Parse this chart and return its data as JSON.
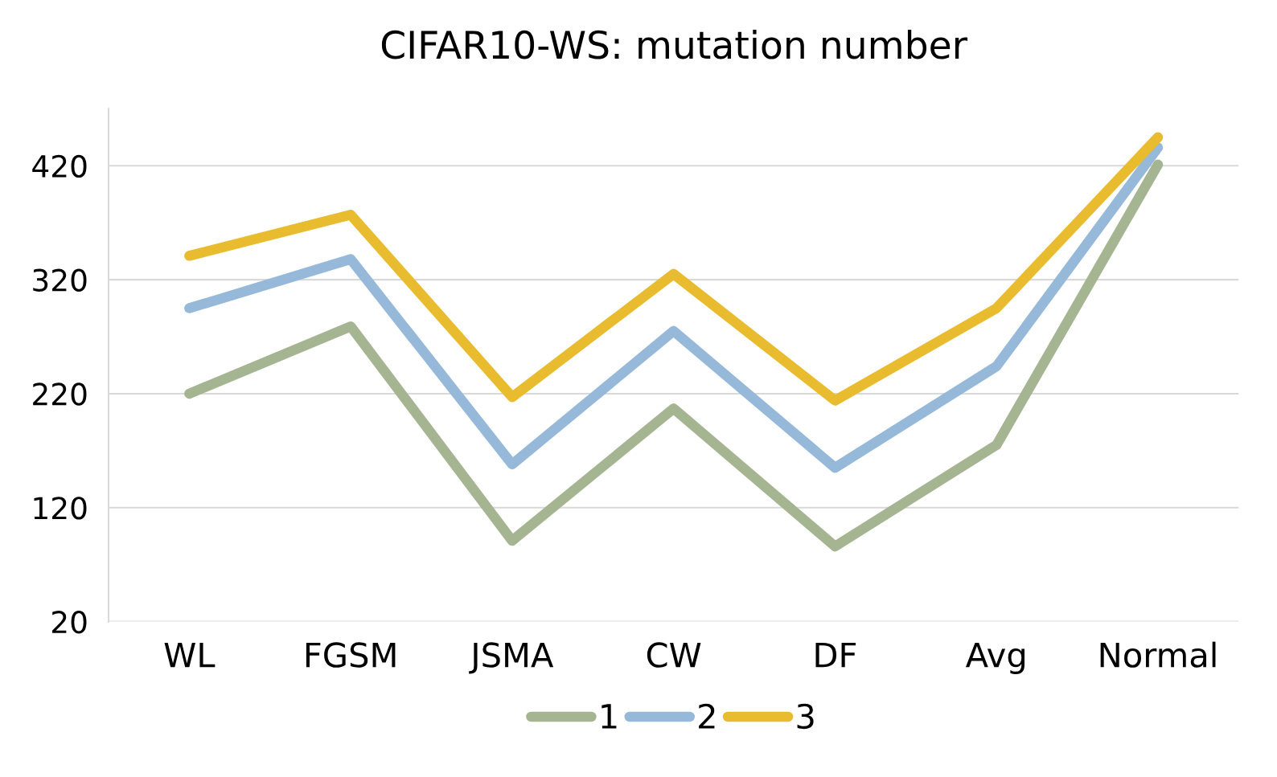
{
  "chart_data": {
    "type": "line",
    "title": "CIFAR10-WS: mutation number",
    "categories": [
      "WL",
      "FGSM",
      "JSMA",
      "CW",
      "DF",
      "Avg",
      "Normal"
    ],
    "series": [
      {
        "name": "1",
        "color": "#a5b592",
        "values": [
          220,
          279,
          91,
          207,
          86,
          175,
          421
        ]
      },
      {
        "name": "2",
        "color": "#97b9d9",
        "values": [
          295,
          338,
          158,
          275,
          155,
          244,
          436
        ]
      },
      {
        "name": "3",
        "color": "#e8bc2e",
        "values": [
          341,
          377,
          217,
          325,
          214,
          295,
          445
        ]
      }
    ],
    "ylim": [
      20,
      470
    ],
    "yticks": [
      20,
      120,
      220,
      320,
      420
    ],
    "grid": "y",
    "legend": "bottom",
    "line_style": "solid"
  }
}
